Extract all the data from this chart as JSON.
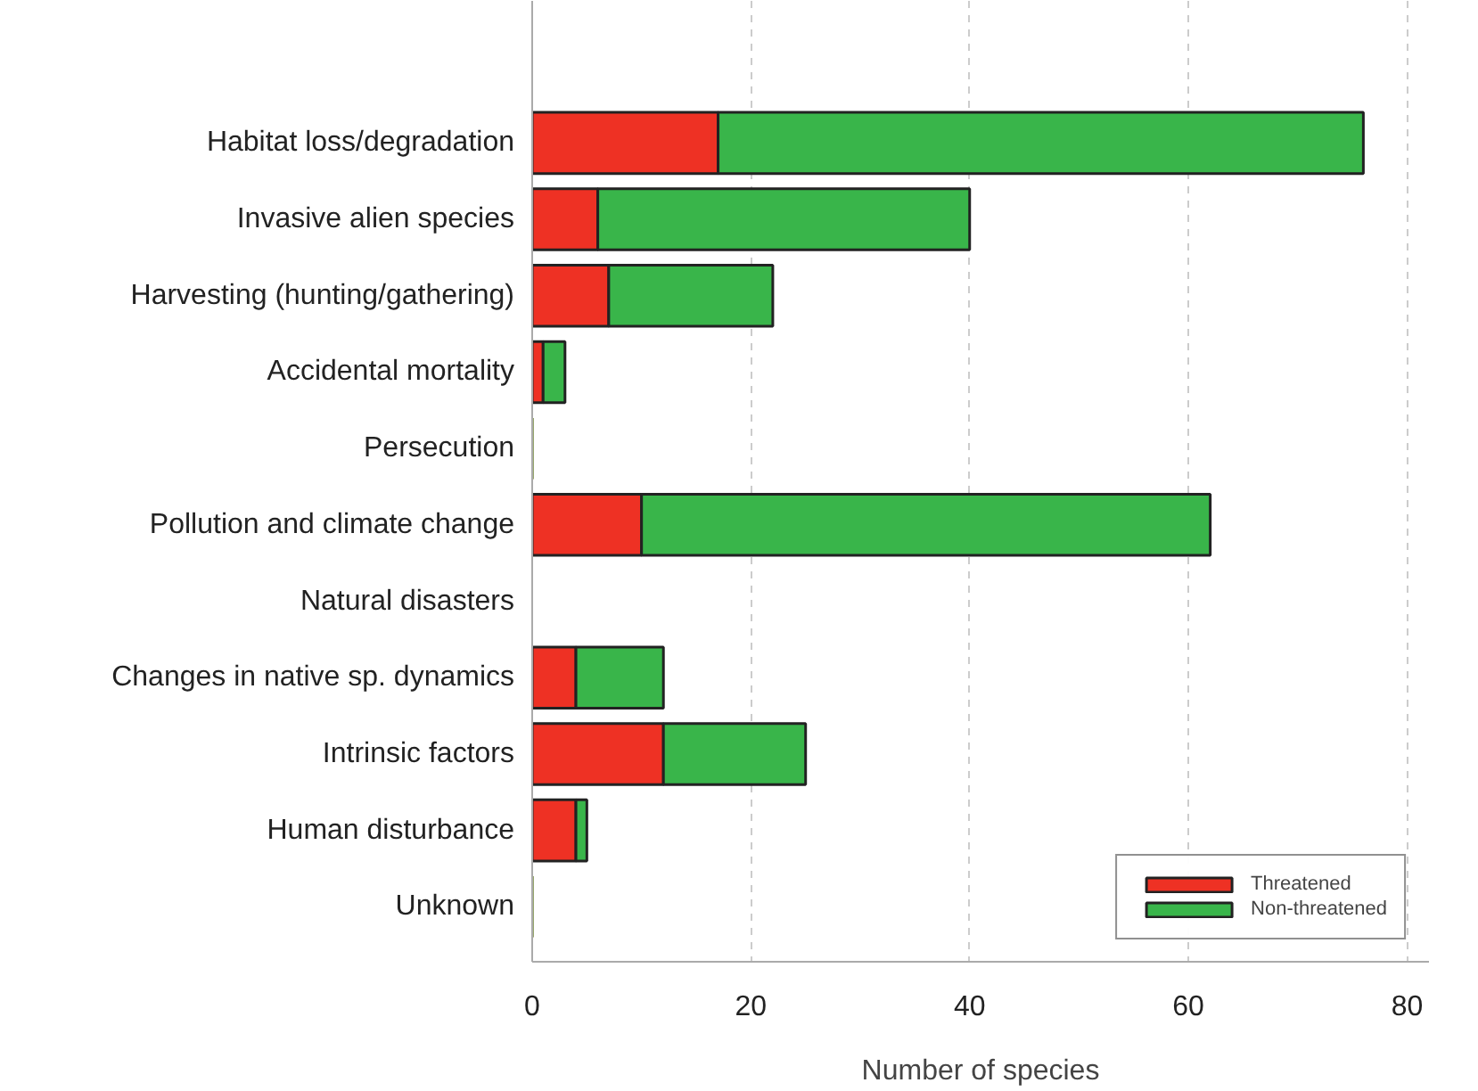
{
  "chart_data": {
    "type": "bar",
    "orientation": "horizontal",
    "stacked": true,
    "xlabel": "Number of species",
    "categories": [
      "Habitat loss/degradation",
      "Invasive alien species",
      "Harvesting (hunting/gathering)",
      "Accidental mortality",
      "Persecution",
      "Pollution and climate change",
      "Natural disasters",
      "Changes in native sp. dynamics",
      "Intrinsic factors",
      "Human disturbance",
      "Unknown"
    ],
    "series": [
      {
        "name": "Threatened",
        "color": "#ee3124",
        "values": [
          17,
          6,
          7,
          1,
          0,
          10,
          null,
          4,
          12,
          4,
          0
        ]
      },
      {
        "name": "Non-threatened",
        "color": "#39b54a",
        "values": [
          59,
          34,
          15,
          2,
          0,
          52,
          null,
          8,
          13,
          1,
          0
        ]
      }
    ],
    "xlim": [
      0,
      82
    ],
    "xticks": [
      0,
      20,
      40,
      60,
      80
    ],
    "grid": "x",
    "legend": "bottom right"
  }
}
